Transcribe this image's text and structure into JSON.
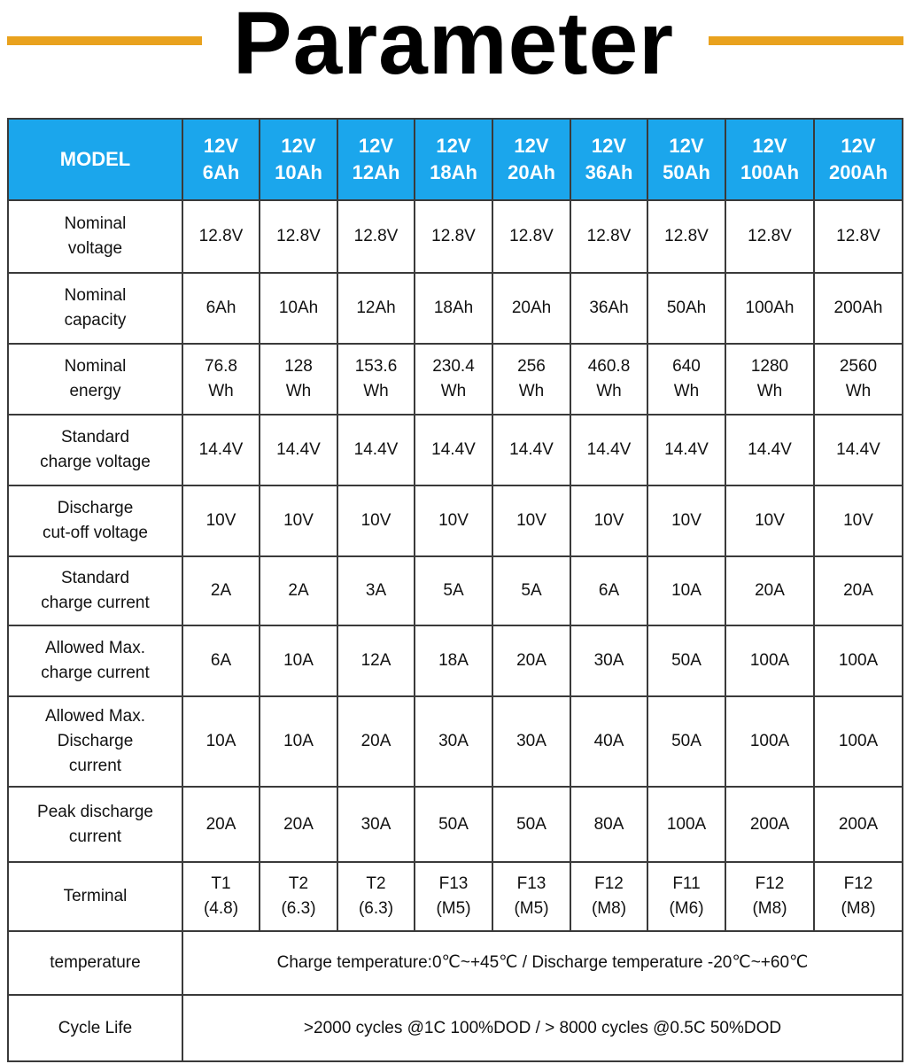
{
  "header": {
    "title": "Parameter"
  },
  "table": {
    "head": [
      "MODEL",
      "12V\n6Ah",
      "12V\n10Ah",
      "12V\n12Ah",
      "12V\n18Ah",
      "12V\n20Ah",
      "12V\n36Ah",
      "12V\n50Ah",
      "12V\n100Ah",
      "12V\n200Ah"
    ],
    "rows": [
      {
        "label": "Nominal\nvoltage",
        "values": [
          "12.8V",
          "12.8V",
          "12.8V",
          "12.8V",
          "12.8V",
          "12.8V",
          "12.8V",
          "12.8V",
          "12.8V"
        ]
      },
      {
        "label": "Nominal\ncapacity",
        "values": [
          "6Ah",
          "10Ah",
          "12Ah",
          "18Ah",
          "20Ah",
          "36Ah",
          "50Ah",
          "100Ah",
          "200Ah"
        ]
      },
      {
        "label": "Nominal\nenergy",
        "values": [
          "76.8\nWh",
          "128\nWh",
          "153.6\nWh",
          "230.4\nWh",
          "256\nWh",
          "460.8\nWh",
          "640\nWh",
          "1280\nWh",
          "2560\nWh"
        ]
      },
      {
        "label": "Standard\ncharge voltage",
        "values": [
          "14.4V",
          "14.4V",
          "14.4V",
          "14.4V",
          "14.4V",
          "14.4V",
          "14.4V",
          "14.4V",
          "14.4V"
        ]
      },
      {
        "label": "Discharge\ncut-off voltage",
        "values": [
          "10V",
          "10V",
          "10V",
          "10V",
          "10V",
          "10V",
          "10V",
          "10V",
          "10V"
        ]
      },
      {
        "label": "Standard\ncharge current",
        "values": [
          "2A",
          "2A",
          "3A",
          "5A",
          "5A",
          "6A",
          "10A",
          "20A",
          "20A"
        ]
      },
      {
        "label": "Allowed Max.\ncharge current",
        "values": [
          "6A",
          "10A",
          "12A",
          "18A",
          "20A",
          "30A",
          "50A",
          "100A",
          "100A"
        ]
      },
      {
        "label": "Allowed Max.\nDischarge\ncurrent",
        "values": [
          "10A",
          "10A",
          "20A",
          "30A",
          "30A",
          "40A",
          "50A",
          "100A",
          "100A"
        ]
      },
      {
        "label": "Peak discharge\ncurrent",
        "values": [
          "20A",
          "20A",
          "30A",
          "50A",
          "50A",
          "80A",
          "100A",
          "200A",
          "200A"
        ]
      },
      {
        "label": "Terminal",
        "values": [
          "T1\n(4.8)",
          "T2\n(6.3)",
          "T2\n(6.3)",
          "F13\n(M5)",
          "F13\n(M5)",
          "F12\n(M8)",
          "F11\n(M6)",
          "F12\n(M8)",
          "F12\n(M8)"
        ]
      }
    ],
    "span_rows": [
      {
        "label": "temperature",
        "value": "Charge temperature:0℃~+45℃ / Discharge temperature -20℃~+60℃"
      },
      {
        "label": "Cycle Life",
        "value": ">2000 cycles @1C 100%DOD    /    > 8000 cycles @0.5C 50%DOD"
      }
    ]
  }
}
